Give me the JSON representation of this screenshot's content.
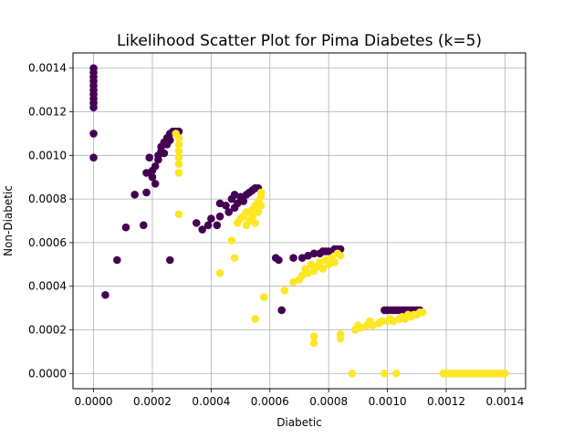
{
  "chart_data": {
    "type": "scatter",
    "title": "Likelihood Scatter Plot for Pima Diabetes (k=5)",
    "xlabel": "Diabetic",
    "ylabel": "Non-Diabetic",
    "xlim": [
      -7e-05,
      0.00147
    ],
    "ylim": [
      -7e-05,
      0.00147
    ],
    "xticks": [
      "0.0000",
      "0.0002",
      "0.0004",
      "0.0006",
      "0.0008",
      "0.0010",
      "0.0012",
      "0.0014"
    ],
    "yticks": [
      "0.0000",
      "0.0002",
      "0.0004",
      "0.0006",
      "0.0008",
      "0.0010",
      "0.0012",
      "0.0014"
    ],
    "tick_values": [
      0,
      0.0002,
      0.0004,
      0.0006,
      0.0008,
      0.001,
      0.0012,
      0.0014
    ],
    "grid": true,
    "legend": "none",
    "series": [
      {
        "color": "#440154",
        "points": [
          [
            0.0,
            0.0014
          ],
          [
            0.0,
            0.00138
          ],
          [
            0.0,
            0.00136
          ],
          [
            0.0,
            0.00134
          ],
          [
            0.0,
            0.00132
          ],
          [
            0.0,
            0.0013
          ],
          [
            0.0,
            0.00128
          ],
          [
            0.0,
            0.00126
          ],
          [
            0.0,
            0.00124
          ],
          [
            0.0,
            0.00122
          ],
          [
            0.0,
            0.0011
          ],
          [
            0.0,
            0.00099
          ],
          [
            4e-05,
            0.00036
          ],
          [
            8e-05,
            0.00052
          ],
          [
            0.00011,
            0.00067
          ],
          [
            0.00014,
            0.00082
          ],
          [
            0.00017,
            0.00068
          ],
          [
            0.00018,
            0.00083
          ],
          [
            0.00018,
            0.00092
          ],
          [
            0.00019,
            0.00099
          ],
          [
            0.0002,
            0.00093
          ],
          [
            0.0002,
            0.0009
          ],
          [
            0.00021,
            0.00087
          ],
          [
            0.00021,
            0.00095
          ],
          [
            0.00022,
            0.00098
          ],
          [
            0.00022,
            0.001
          ],
          [
            0.00023,
            0.00102
          ],
          [
            0.00023,
            0.00104
          ],
          [
            0.00024,
            0.00106
          ],
          [
            0.00024,
            0.00101
          ],
          [
            0.00025,
            0.00108
          ],
          [
            0.00025,
            0.00105
          ],
          [
            0.00026,
            0.0011
          ],
          [
            0.00026,
            0.00107
          ],
          [
            0.00027,
            0.00111
          ],
          [
            0.00028,
            0.00111
          ],
          [
            0.00029,
            0.00111
          ],
          [
            0.00026,
            0.00052
          ],
          [
            0.00035,
            0.00069
          ],
          [
            0.00037,
            0.00066
          ],
          [
            0.00039,
            0.00068
          ],
          [
            0.0004,
            0.00071
          ],
          [
            0.00042,
            0.00068
          ],
          [
            0.00043,
            0.00072
          ],
          [
            0.00043,
            0.00078
          ],
          [
            0.00045,
            0.00077
          ],
          [
            0.00046,
            0.00074
          ],
          [
            0.00047,
            0.0008
          ],
          [
            0.00048,
            0.00076
          ],
          [
            0.00048,
            0.00082
          ],
          [
            0.00049,
            0.00078
          ],
          [
            0.0005,
            0.00081
          ],
          [
            0.00051,
            0.00079
          ],
          [
            0.00052,
            0.00082
          ],
          [
            0.00053,
            0.00083
          ],
          [
            0.00054,
            0.00084
          ],
          [
            0.00055,
            0.00085
          ],
          [
            0.00056,
            0.00085
          ],
          [
            0.00062,
            0.00053
          ],
          [
            0.00063,
            0.00052
          ],
          [
            0.00064,
            0.00029
          ],
          [
            0.00068,
            0.00053
          ],
          [
            0.00071,
            0.00053
          ],
          [
            0.00073,
            0.00054
          ],
          [
            0.00075,
            0.00055
          ],
          [
            0.00077,
            0.00055
          ],
          [
            0.00078,
            0.00056
          ],
          [
            0.00079,
            0.00056
          ],
          [
            0.0008,
            0.00056
          ],
          [
            0.00082,
            0.00057
          ],
          [
            0.00083,
            0.00057
          ],
          [
            0.00084,
            0.00057
          ],
          [
            0.00099,
            0.00029
          ],
          [
            0.001,
            0.00029
          ],
          [
            0.00101,
            0.00029
          ],
          [
            0.00102,
            0.00029
          ],
          [
            0.00103,
            0.00029
          ],
          [
            0.00104,
            0.00029
          ],
          [
            0.00105,
            0.00029
          ],
          [
            0.00106,
            0.00029
          ],
          [
            0.00107,
            0.00029
          ],
          [
            0.00108,
            0.00029
          ],
          [
            0.00109,
            0.00029
          ],
          [
            0.0011,
            0.00029
          ],
          [
            0.00111,
            0.00029
          ]
        ]
      },
      {
        "color": "#fde725",
        "points": [
          [
            0.00028,
            0.0011
          ],
          [
            0.00029,
            0.00108
          ],
          [
            0.00029,
            0.00105
          ],
          [
            0.00029,
            0.00102
          ],
          [
            0.00029,
            0.00099
          ],
          [
            0.00029,
            0.00096
          ],
          [
            0.00029,
            0.00092
          ],
          [
            0.00029,
            0.00073
          ],
          [
            0.00043,
            0.00046
          ],
          [
            0.00047,
            0.00061
          ],
          [
            0.00048,
            0.00053
          ],
          [
            0.00049,
            0.00069
          ],
          [
            0.0005,
            0.00071
          ],
          [
            0.00051,
            0.00072
          ],
          [
            0.00052,
            0.00068
          ],
          [
            0.00052,
            0.00074
          ],
          [
            0.00053,
            0.0007
          ],
          [
            0.00054,
            0.00075
          ],
          [
            0.00054,
            0.00072
          ],
          [
            0.00055,
            0.00077
          ],
          [
            0.00055,
            0.00069
          ],
          [
            0.00055,
            0.00025
          ],
          [
            0.00056,
            0.00079
          ],
          [
            0.00056,
            0.00074
          ],
          [
            0.00057,
            0.00081
          ],
          [
            0.00057,
            0.00077
          ],
          [
            0.00057,
            0.00083
          ],
          [
            0.00058,
            0.00035
          ],
          [
            0.00065,
            0.00038
          ],
          [
            0.00068,
            0.00042
          ],
          [
            0.0007,
            0.00043
          ],
          [
            0.00071,
            0.00045
          ],
          [
            0.00072,
            0.00048
          ],
          [
            0.00073,
            0.00046
          ],
          [
            0.00074,
            0.0005
          ],
          [
            0.00075,
            0.00047
          ],
          [
            0.00075,
            0.00017
          ],
          [
            0.00075,
            0.00014
          ],
          [
            0.00076,
            0.00049
          ],
          [
            0.00077,
            0.00051
          ],
          [
            0.00078,
            0.00048
          ],
          [
            0.00079,
            0.00052
          ],
          [
            0.0008,
            0.0005
          ],
          [
            0.00081,
            0.00053
          ],
          [
            0.00082,
            0.00051
          ],
          [
            0.00083,
            0.00055
          ],
          [
            0.00084,
            0.00054
          ],
          [
            0.00084,
            0.00018
          ],
          [
            0.00084,
            0.00016
          ],
          [
            0.00088,
            0.0
          ],
          [
            0.00089,
            0.0002
          ],
          [
            0.0009,
            0.00022
          ],
          [
            0.00091,
            0.00021
          ],
          [
            0.00093,
            0.00022
          ],
          [
            0.00094,
            0.00024
          ],
          [
            0.00095,
            0.00022
          ],
          [
            0.00097,
            0.00023
          ],
          [
            0.00098,
            0.00024
          ],
          [
            0.00099,
            0.0
          ],
          [
            0.001,
            0.00024
          ],
          [
            0.00101,
            0.00025
          ],
          [
            0.00102,
            0.00024
          ],
          [
            0.00103,
            0.0
          ],
          [
            0.00104,
            0.00025
          ],
          [
            0.00105,
            0.00026
          ],
          [
            0.00106,
            0.00025
          ],
          [
            0.00107,
            0.00027
          ],
          [
            0.00108,
            0.00026
          ],
          [
            0.00109,
            0.00027
          ],
          [
            0.0011,
            0.00027
          ],
          [
            0.00111,
            0.00028
          ],
          [
            0.00112,
            0.00028
          ],
          [
            0.00119,
            0.0
          ],
          [
            0.0012,
            0.0
          ],
          [
            0.00121,
            0.0
          ],
          [
            0.00122,
            0.0
          ],
          [
            0.00123,
            0.0
          ],
          [
            0.00124,
            0.0
          ],
          [
            0.00125,
            0.0
          ],
          [
            0.00126,
            0.0
          ],
          [
            0.00127,
            0.0
          ],
          [
            0.00128,
            0.0
          ],
          [
            0.00129,
            0.0
          ],
          [
            0.0013,
            0.0
          ],
          [
            0.00131,
            0.0
          ],
          [
            0.00132,
            0.0
          ],
          [
            0.00133,
            0.0
          ],
          [
            0.00134,
            0.0
          ],
          [
            0.00135,
            0.0
          ],
          [
            0.00136,
            0.0
          ],
          [
            0.00137,
            0.0
          ],
          [
            0.00138,
            0.0
          ],
          [
            0.00139,
            0.0
          ],
          [
            0.0014,
            0.0
          ]
        ]
      }
    ]
  }
}
